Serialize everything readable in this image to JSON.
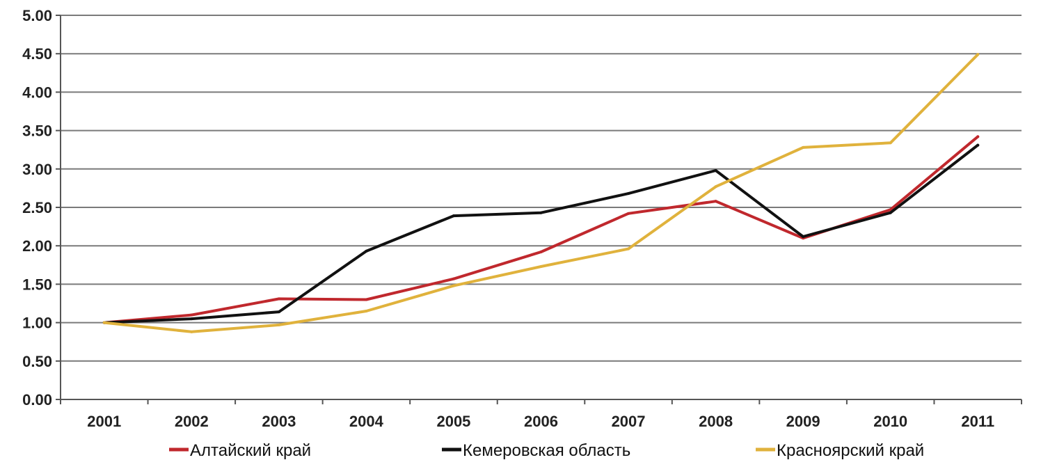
{
  "chart_data": {
    "type": "line",
    "title": "",
    "xlabel": "",
    "ylabel": "",
    "categories": [
      "2001",
      "2002",
      "2003",
      "2004",
      "2005",
      "2006",
      "2007",
      "2008",
      "2009",
      "2010",
      "2011"
    ],
    "ylim": [
      0,
      5
    ],
    "yticks": [
      "0.00",
      "0.50",
      "1.00",
      "1.50",
      "2.00",
      "2.50",
      "3.00",
      "3.50",
      "4.00",
      "4.50",
      "5.00"
    ],
    "grid": true,
    "legend_position": "bottom",
    "series": [
      {
        "name": "Алтайский край",
        "color": "#c0282d",
        "values": [
          1.0,
          1.1,
          1.31,
          1.3,
          1.57,
          1.92,
          2.42,
          2.58,
          2.1,
          2.47,
          3.42
        ]
      },
      {
        "name": "Кемеровская область",
        "color": "#111111",
        "values": [
          1.0,
          1.05,
          1.14,
          1.93,
          2.39,
          2.43,
          2.68,
          2.98,
          2.12,
          2.43,
          3.31
        ]
      },
      {
        "name": "Красноярский край",
        "color": "#e0b23c",
        "values": [
          1.0,
          0.88,
          0.97,
          1.15,
          1.48,
          1.73,
          1.96,
          2.77,
          3.28,
          3.34,
          4.49
        ]
      }
    ]
  }
}
